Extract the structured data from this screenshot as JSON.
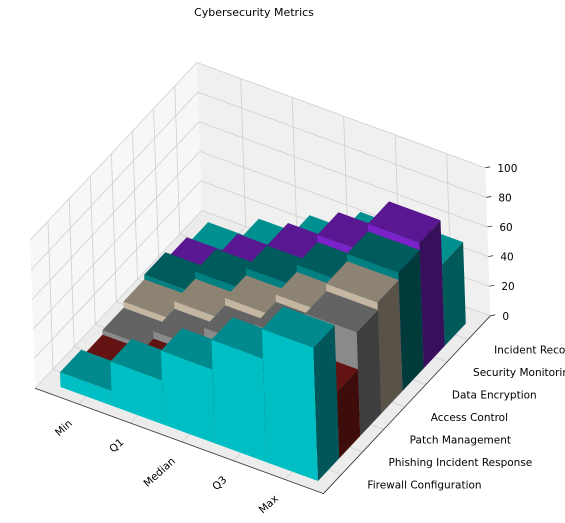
{
  "chart_data": {
    "type": "bar3d",
    "title": "Cybersecurity Metrics",
    "categories": [
      "Min",
      "Q1",
      "Median",
      "Q3",
      "Max"
    ],
    "series": [
      {
        "name": "Firewall Configuration",
        "values": [
          10,
          30,
          50,
          70,
          90
        ],
        "color": "#00bfc4"
      },
      {
        "name": "Phishing Incident Response",
        "values": [
          5,
          15,
          25,
          35,
          45
        ],
        "color": "#8b1a1a"
      },
      {
        "name": "Patch Management",
        "values": [
          8,
          20,
          35,
          50,
          70
        ],
        "color": "#8a8a8a"
      },
      {
        "name": "Access Control",
        "values": [
          12,
          25,
          40,
          55,
          75
        ],
        "color": "#c4b6a0"
      },
      {
        "name": "Data Encryption",
        "values": [
          15,
          30,
          45,
          60,
          80
        ],
        "color": "#008080"
      },
      {
        "name": "Security Monitoring",
        "values": [
          10,
          25,
          45,
          65,
          85
        ],
        "color": "#7b22c9"
      },
      {
        "name": "Incident Recovery",
        "values": [
          5,
          20,
          35,
          50,
          55
        ],
        "color": "#00c8c8"
      }
    ],
    "z_ticks": [
      "0",
      "20",
      "40",
      "60",
      "80",
      "100"
    ],
    "zlim": [
      0,
      100
    ],
    "grid": true
  }
}
